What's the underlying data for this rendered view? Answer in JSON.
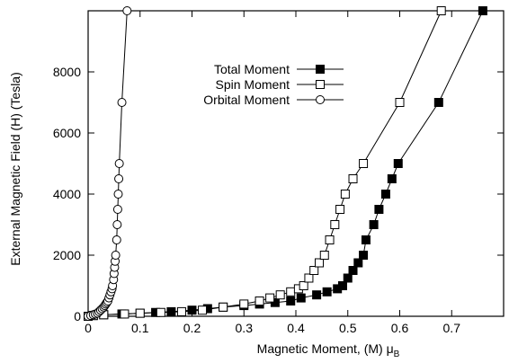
{
  "chart_data": {
    "type": "line",
    "xlabel": "Magnetic Moment, (M) μ",
    "xlabel_sub": "B",
    "ylabel": "External Magnetic Field (H) (Tesla)",
    "xlim": [
      0,
      0.8
    ],
    "ylim": [
      0,
      10000
    ],
    "x_ticks": [
      "0",
      "0.1",
      "0.2",
      "0.3",
      "0.4",
      "0.5",
      "0.6",
      "0.7"
    ],
    "y_ticks": [
      "0",
      "2000",
      "4000",
      "6000",
      "8000"
    ],
    "grid": false,
    "legend_position": "top-center",
    "series": [
      {
        "name": "Total Moment",
        "marker": "filled-square",
        "points": [
          [
            0,
            0
          ],
          [
            0.01,
            25
          ],
          [
            0.03,
            50
          ],
          [
            0.065,
            75
          ],
          [
            0.1,
            100
          ],
          [
            0.13,
            125
          ],
          [
            0.16,
            150
          ],
          [
            0.2,
            200
          ],
          [
            0.23,
            250
          ],
          [
            0.26,
            300
          ],
          [
            0.3,
            350
          ],
          [
            0.33,
            400
          ],
          [
            0.36,
            450
          ],
          [
            0.39,
            500
          ],
          [
            0.41,
            600
          ],
          [
            0.44,
            700
          ],
          [
            0.46,
            800
          ],
          [
            0.48,
            900
          ],
          [
            0.49,
            1000
          ],
          [
            0.5,
            1250
          ],
          [
            0.51,
            1500
          ],
          [
            0.52,
            1750
          ],
          [
            0.53,
            2000
          ],
          [
            0.535,
            2500
          ],
          [
            0.55,
            3000
          ],
          [
            0.56,
            3500
          ],
          [
            0.573,
            4000
          ],
          [
            0.585,
            4500
          ],
          [
            0.597,
            5000
          ],
          [
            0.675,
            7000
          ],
          [
            0.76,
            10000
          ]
        ]
      },
      {
        "name": "Spin Moment",
        "marker": "open-square",
        "points": [
          [
            0,
            0
          ],
          [
            0.01,
            25
          ],
          [
            0.03,
            50
          ],
          [
            0.07,
            75
          ],
          [
            0.1,
            100
          ],
          [
            0.14,
            125
          ],
          [
            0.18,
            150
          ],
          [
            0.22,
            200
          ],
          [
            0.26,
            300
          ],
          [
            0.3,
            400
          ],
          [
            0.33,
            500
          ],
          [
            0.35,
            600
          ],
          [
            0.37,
            700
          ],
          [
            0.39,
            800
          ],
          [
            0.405,
            900
          ],
          [
            0.415,
            1000
          ],
          [
            0.425,
            1250
          ],
          [
            0.435,
            1500
          ],
          [
            0.445,
            1750
          ],
          [
            0.455,
            2000
          ],
          [
            0.465,
            2500
          ],
          [
            0.475,
            3000
          ],
          [
            0.485,
            3500
          ],
          [
            0.495,
            4000
          ],
          [
            0.51,
            4500
          ],
          [
            0.53,
            5000
          ],
          [
            0.6,
            7000
          ],
          [
            0.68,
            10000
          ]
        ]
      },
      {
        "name": "Orbital Moment",
        "marker": "open-circle",
        "points": [
          [
            0,
            0
          ],
          [
            0.005,
            25
          ],
          [
            0.01,
            50
          ],
          [
            0.014,
            75
          ],
          [
            0.018,
            100
          ],
          [
            0.021,
            150
          ],
          [
            0.024,
            200
          ],
          [
            0.027,
            250
          ],
          [
            0.03,
            300
          ],
          [
            0.032,
            350
          ],
          [
            0.034,
            400
          ],
          [
            0.036,
            450
          ],
          [
            0.038,
            500
          ],
          [
            0.04,
            600
          ],
          [
            0.042,
            700
          ],
          [
            0.044,
            800
          ],
          [
            0.046,
            900
          ],
          [
            0.047,
            1000
          ],
          [
            0.049,
            1200
          ],
          [
            0.05,
            1400
          ],
          [
            0.051,
            1600
          ],
          [
            0.052,
            1800
          ],
          [
            0.053,
            2000
          ],
          [
            0.055,
            2500
          ],
          [
            0.056,
            3000
          ],
          [
            0.057,
            3500
          ],
          [
            0.058,
            4000
          ],
          [
            0.059,
            4500
          ],
          [
            0.06,
            5000
          ],
          [
            0.065,
            7000
          ],
          [
            0.075,
            10000
          ]
        ]
      }
    ]
  }
}
